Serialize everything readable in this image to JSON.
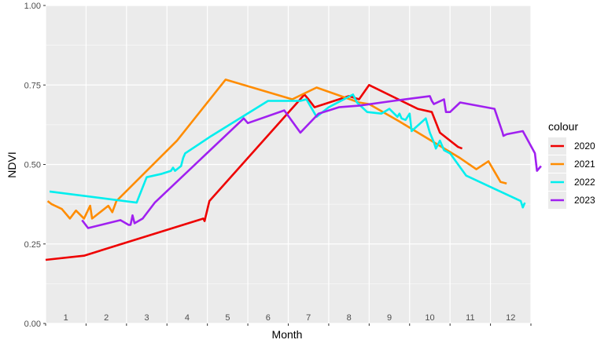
{
  "chart_data": {
    "type": "line",
    "xlabel": "Month",
    "ylabel": "NDVI",
    "xlim": [
      1,
      13
    ],
    "ylim": [
      0,
      1
    ],
    "x_tick_labels": [
      "1",
      "2",
      "3",
      "4",
      "5",
      "6",
      "7",
      "8",
      "9",
      "10",
      "11",
      "12"
    ],
    "y_tick_labels": [
      "0.00",
      "0.25",
      "0.50",
      "0.75",
      "1.00"
    ],
    "y_ticks": [
      0,
      0.25,
      0.5,
      0.75,
      1
    ],
    "panel_background": "#ebebeb",
    "grid": true,
    "legend": {
      "title": "colour",
      "position": "right"
    },
    "series": [
      {
        "name": "2020",
        "color": "#ee0000",
        "points": [
          [
            1.0,
            0.2
          ],
          [
            1.95,
            0.213
          ],
          [
            4.9,
            0.33
          ],
          [
            4.93,
            0.322
          ],
          [
            5.05,
            0.385
          ],
          [
            7.4,
            0.72
          ],
          [
            7.5,
            0.705
          ],
          [
            7.65,
            0.68
          ],
          [
            8.5,
            0.715
          ],
          [
            8.75,
            0.705
          ],
          [
            9.0,
            0.75
          ],
          [
            10.2,
            0.675
          ],
          [
            10.55,
            0.665
          ],
          [
            10.75,
            0.6
          ],
          [
            11.2,
            0.555
          ],
          [
            11.3,
            0.55
          ]
        ]
      },
      {
        "name": "2021",
        "color": "#ff8c00",
        "points": [
          [
            1.05,
            0.385
          ],
          [
            1.15,
            0.375
          ],
          [
            1.4,
            0.36
          ],
          [
            1.6,
            0.33
          ],
          [
            1.75,
            0.355
          ],
          [
            1.95,
            0.33
          ],
          [
            2.1,
            0.37
          ],
          [
            2.15,
            0.33
          ],
          [
            2.55,
            0.37
          ],
          [
            2.65,
            0.35
          ],
          [
            2.75,
            0.385
          ],
          [
            4.25,
            0.575
          ],
          [
            5.45,
            0.767
          ],
          [
            7.1,
            0.705
          ],
          [
            7.7,
            0.742
          ],
          [
            8.75,
            0.695
          ],
          [
            9.0,
            0.69
          ],
          [
            9.75,
            0.635
          ],
          [
            11.25,
            0.52
          ],
          [
            11.65,
            0.485
          ],
          [
            11.95,
            0.51
          ],
          [
            12.25,
            0.445
          ],
          [
            12.4,
            0.44
          ]
        ]
      },
      {
        "name": "2022",
        "color": "#00eeee",
        "points": [
          [
            1.1,
            0.415
          ],
          [
            3.25,
            0.38
          ],
          [
            3.5,
            0.46
          ],
          [
            3.85,
            0.47
          ],
          [
            4.1,
            0.48
          ],
          [
            4.15,
            0.49
          ],
          [
            4.2,
            0.48
          ],
          [
            4.35,
            0.495
          ],
          [
            4.4,
            0.52
          ],
          [
            4.45,
            0.535
          ],
          [
            5.1,
            0.59
          ],
          [
            6.5,
            0.7
          ],
          [
            7.3,
            0.7
          ],
          [
            7.45,
            0.705
          ],
          [
            7.7,
            0.65
          ],
          [
            8.0,
            0.68
          ],
          [
            8.6,
            0.72
          ],
          [
            8.7,
            0.695
          ],
          [
            8.95,
            0.665
          ],
          [
            9.3,
            0.66
          ],
          [
            9.5,
            0.675
          ],
          [
            9.7,
            0.65
          ],
          [
            9.75,
            0.66
          ],
          [
            9.8,
            0.645
          ],
          [
            9.9,
            0.64
          ],
          [
            10.0,
            0.66
          ],
          [
            10.05,
            0.605
          ],
          [
            10.4,
            0.645
          ],
          [
            10.5,
            0.6
          ],
          [
            10.6,
            0.57
          ],
          [
            10.65,
            0.55
          ],
          [
            10.75,
            0.575
          ],
          [
            10.85,
            0.545
          ],
          [
            11.0,
            0.535
          ],
          [
            11.4,
            0.465
          ],
          [
            12.75,
            0.385
          ],
          [
            12.8,
            0.365
          ],
          [
            12.85,
            0.38
          ]
        ]
      },
      {
        "name": "2023",
        "color": "#a020f0",
        "points": [
          [
            1.9,
            0.325
          ],
          [
            2.05,
            0.3
          ],
          [
            2.85,
            0.325
          ],
          [
            3.05,
            0.31
          ],
          [
            3.1,
            0.31
          ],
          [
            3.15,
            0.34
          ],
          [
            3.2,
            0.315
          ],
          [
            3.4,
            0.33
          ],
          [
            3.7,
            0.38
          ],
          [
            5.9,
            0.645
          ],
          [
            6.0,
            0.63
          ],
          [
            6.9,
            0.67
          ],
          [
            7.3,
            0.6
          ],
          [
            7.45,
            0.62
          ],
          [
            7.75,
            0.66
          ],
          [
            8.25,
            0.68
          ],
          [
            8.75,
            0.685
          ],
          [
            9.6,
            0.7
          ],
          [
            10.5,
            0.715
          ],
          [
            10.55,
            0.7
          ],
          [
            10.6,
            0.69
          ],
          [
            10.85,
            0.705
          ],
          [
            10.9,
            0.665
          ],
          [
            11.0,
            0.665
          ],
          [
            11.25,
            0.695
          ],
          [
            12.1,
            0.675
          ],
          [
            12.3,
            0.6
          ],
          [
            12.32,
            0.59
          ],
          [
            12.4,
            0.595
          ],
          [
            12.8,
            0.605
          ],
          [
            13.1,
            0.535
          ],
          [
            13.15,
            0.48
          ],
          [
            13.25,
            0.495
          ]
        ]
      }
    ]
  }
}
